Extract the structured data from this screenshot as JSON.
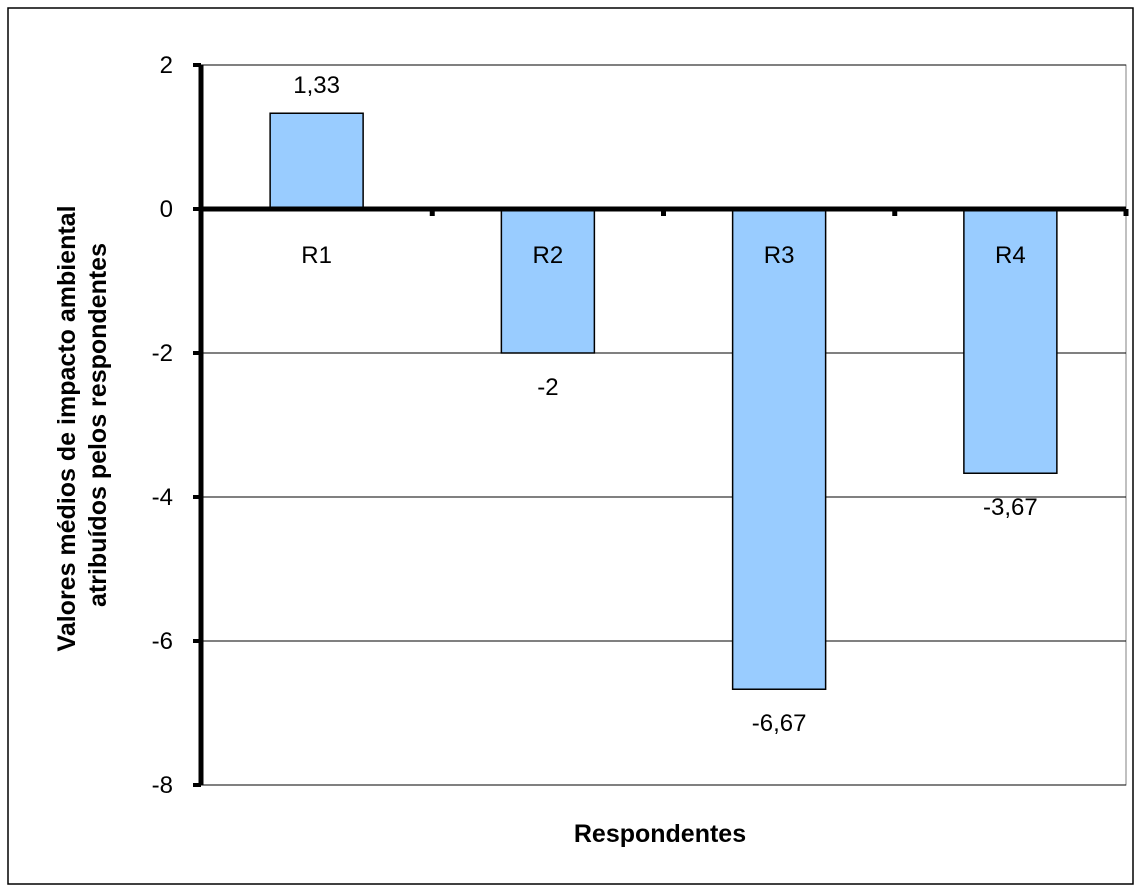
{
  "chart_data": {
    "type": "bar",
    "categories": [
      "R1",
      "R2",
      "R3",
      "R4"
    ],
    "values": [
      1.33,
      -2,
      -6.67,
      -3.67
    ],
    "value_labels": [
      "1,33",
      "-2",
      "-6,67",
      "-3,67"
    ],
    "title": "",
    "xlabel": "Respondentes",
    "ylabel_lines": [
      "Valores médios de impacto ambiental",
      "atribuídos pelos respondentes"
    ],
    "ylim": [
      -8,
      2
    ],
    "yticks": [
      2,
      0,
      -2,
      -4,
      -6,
      -8
    ],
    "ytick_labels": [
      "2",
      "0",
      "-2",
      "-4",
      "-6",
      "-8"
    ],
    "grid": true,
    "legend": "none",
    "colors": {
      "bar_fill": "#99ccff",
      "bar_stroke": "#000000",
      "grid": "#000000",
      "axis": "#000000"
    }
  }
}
